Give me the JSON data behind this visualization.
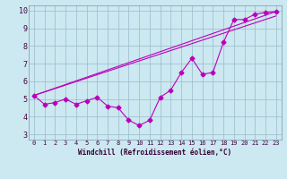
{
  "xlabel": "Windchill (Refroidissement éolien,°C)",
  "bg_color": "#cce8f0",
  "line_color": "#bb00bb",
  "grid_color": "#99bbcc",
  "xlim": [
    -0.5,
    23.5
  ],
  "ylim": [
    2.7,
    10.3
  ],
  "xticks": [
    0,
    1,
    2,
    3,
    4,
    5,
    6,
    7,
    8,
    9,
    10,
    11,
    12,
    13,
    14,
    15,
    16,
    17,
    18,
    19,
    20,
    21,
    22,
    23
  ],
  "yticks": [
    3,
    4,
    5,
    6,
    7,
    8,
    9,
    10
  ],
  "line1_x": [
    0,
    1,
    2,
    3,
    4,
    5,
    6,
    7,
    8,
    9,
    10,
    11,
    12,
    13,
    14,
    15,
    16,
    17,
    18,
    19,
    20,
    21,
    22,
    23
  ],
  "line1_y": [
    5.2,
    4.7,
    4.8,
    5.0,
    4.7,
    4.9,
    5.1,
    4.6,
    4.5,
    3.8,
    3.5,
    3.8,
    5.1,
    5.5,
    6.5,
    7.3,
    6.4,
    6.5,
    8.2,
    9.5,
    9.5,
    9.8,
    9.9,
    9.95
  ],
  "line2_x": [
    0,
    23
  ],
  "line2_y": [
    5.2,
    9.7
  ],
  "line3_x": [
    0,
    23
  ],
  "line3_y": [
    5.2,
    9.95
  ],
  "marker_size": 2.5,
  "line_width": 0.8,
  "tick_fontsize": 5,
  "xlabel_fontsize": 5.5
}
